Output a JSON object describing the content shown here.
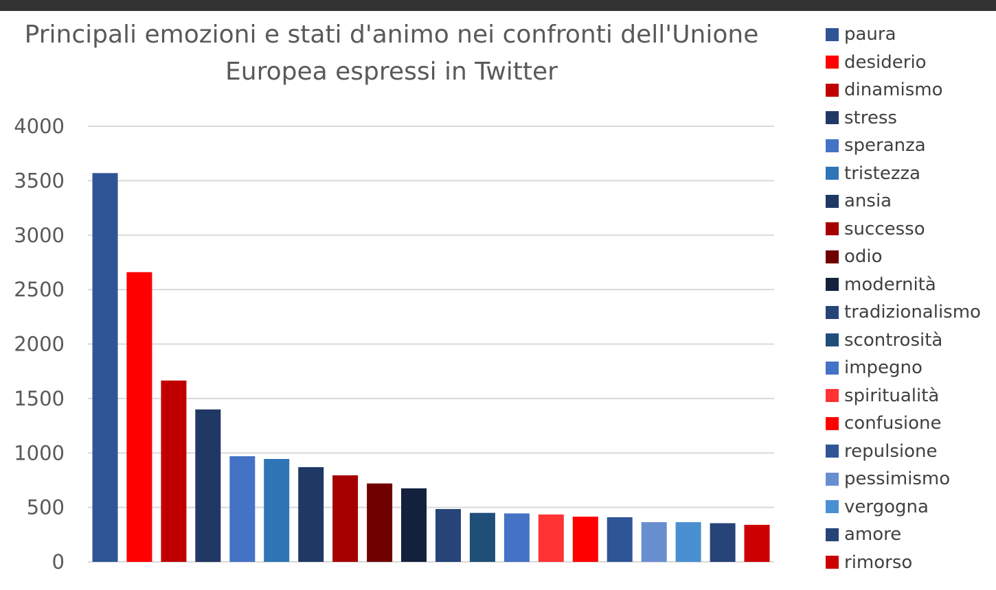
{
  "chart_data": {
    "type": "bar",
    "title_lines": [
      "Principali emozioni e stati d'animo nei confronti dell'Unione",
      "Europea espressi in Twitter"
    ],
    "xlabel": "",
    "ylabel": "",
    "ylim": [
      0,
      4000
    ],
    "yticks": [
      "4000",
      "3500",
      "3000",
      "2500",
      "2000",
      "1500",
      "1000",
      "500",
      "0"
    ],
    "ytick_values": [
      4000,
      3500,
      3000,
      2500,
      2000,
      1500,
      1000,
      500,
      0
    ],
    "grid": true,
    "legend_position": "right",
    "categories": [
      "paura",
      "desiderio",
      "dinamismo",
      "stress",
      "speranza",
      "tristezza",
      "ansia",
      "successo",
      "odio",
      "modernità",
      "tradizionalismo",
      "scontrosità",
      "impegno",
      "spiritualità",
      "confusione",
      "repulsione",
      "pessimismo",
      "vergogna",
      "amore",
      "rimorso"
    ],
    "values": [
      3570,
      2660,
      1665,
      1400,
      970,
      945,
      870,
      795,
      720,
      675,
      485,
      450,
      445,
      435,
      415,
      410,
      365,
      365,
      355,
      340
    ],
    "colors": [
      "#2F5597",
      "#FF0000",
      "#C00000",
      "#203864",
      "#4472C4",
      "#2E75B6",
      "#1F3864",
      "#A50000",
      "#700000",
      "#14213D",
      "#264478",
      "#1F4E79",
      "#4472C4",
      "#FF3333",
      "#FF0000",
      "#2F5597",
      "#698ED0",
      "#4A90D0",
      "#264478",
      "#CC0000"
    ]
  }
}
